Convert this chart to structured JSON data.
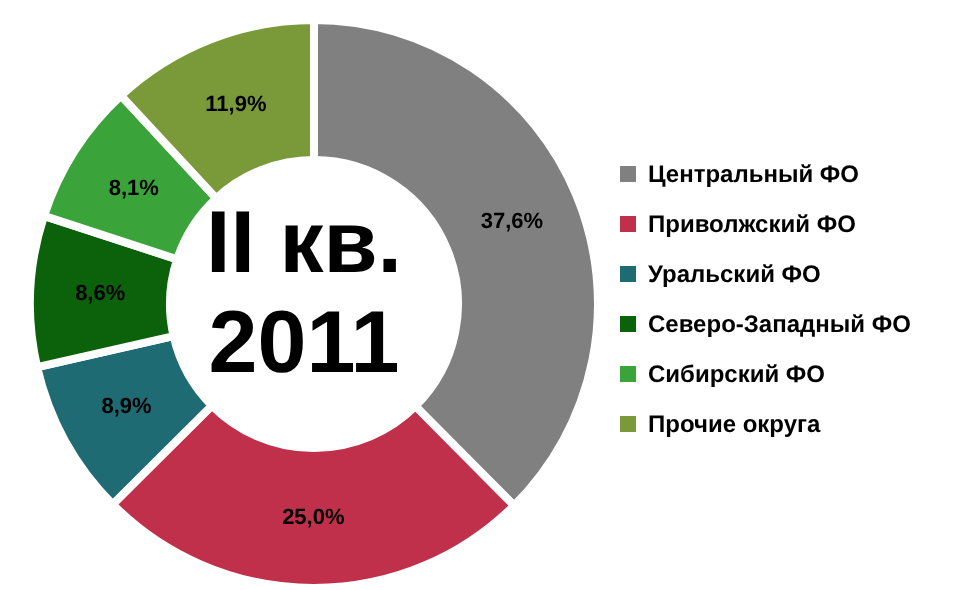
{
  "chart_data": {
    "type": "donut",
    "title": "II кв. 2011",
    "categories": [
      "Центральный ФО",
      "Приволжский ФО",
      "Уральский ФО",
      "Северо-Западный ФО",
      "Сибирский ФО",
      "Прочие округа"
    ],
    "values": [
      37.6,
      25.0,
      8.9,
      8.6,
      8.1,
      11.9
    ],
    "value_labels": [
      "37,6%",
      "25,0%",
      "8,9%",
      "8,6%",
      "8,1%",
      "11,9%"
    ],
    "colors": [
      "#808080",
      "#c0304a",
      "#1f6b73",
      "#0b620b",
      "#3aa43a",
      "#7a9a3a"
    ],
    "legend": "right"
  }
}
